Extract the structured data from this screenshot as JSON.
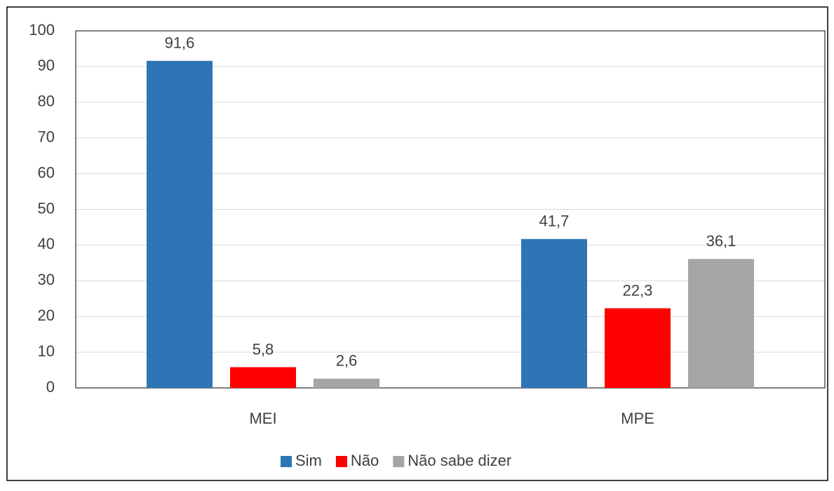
{
  "chart_data": {
    "type": "bar",
    "categories": [
      "MEI",
      "MPE"
    ],
    "series": [
      {
        "name": "Sim",
        "color": "#2e75b6",
        "values": [
          91.6,
          41.7
        ],
        "value_labels": [
          "91,6",
          "41,7"
        ]
      },
      {
        "name": "Não",
        "color": "#ff0000",
        "values": [
          5.8,
          22.3
        ],
        "value_labels": [
          "5,8",
          "22,3"
        ]
      },
      {
        "name": "Não sabe dizer",
        "color": "#a5a5a5",
        "values": [
          2.6,
          36.1
        ],
        "value_labels": [
          "2,6",
          "36,1"
        ]
      }
    ],
    "ylim": [
      0,
      100
    ],
    "yticks": [
      0,
      10,
      20,
      30,
      40,
      50,
      60,
      70,
      80,
      90,
      100
    ],
    "grid": true,
    "legend": "bottom"
  }
}
